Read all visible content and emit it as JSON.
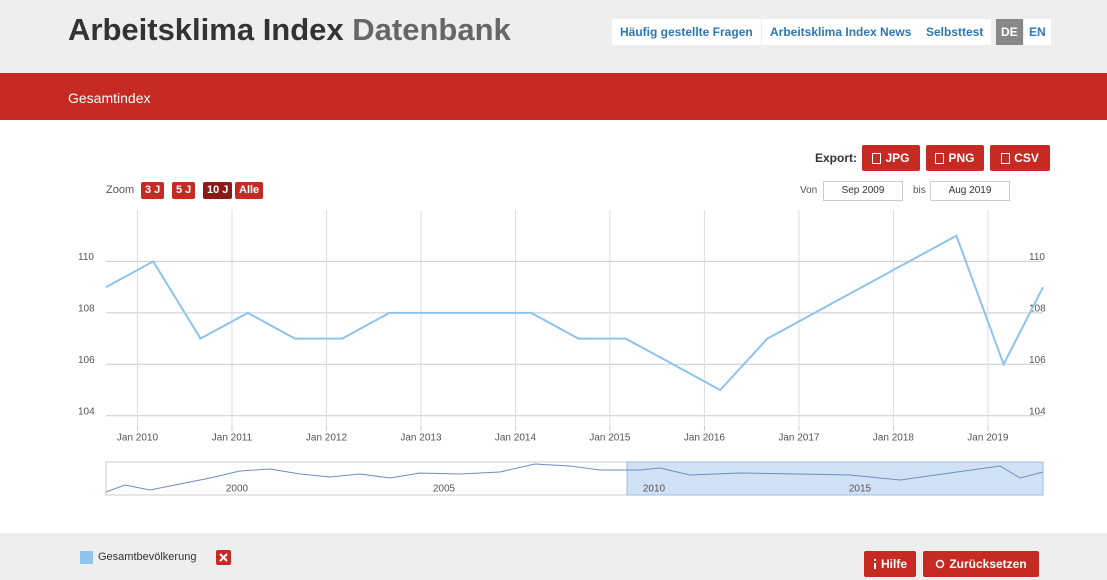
{
  "header": {
    "title": "Arbeitsklima Index",
    "title_suffix": "Datenbank",
    "nav": [
      "Häufig gestellte Fragen",
      "Arbeitsklima Index News",
      "Selbsttest"
    ],
    "languages": [
      "DE",
      "EN"
    ]
  },
  "section": {
    "title": "Gesamtindex"
  },
  "export": {
    "label": "Export:",
    "buttons": [
      "JPG",
      "PNG",
      "CSV"
    ]
  },
  "zoom": {
    "label": "Zoom",
    "buttons": [
      "3 J",
      "5 J",
      "10 J",
      "Alle"
    ]
  },
  "range": {
    "from_label": "Von",
    "from": "Sep 2009",
    "to_label": "bis",
    "to": "Aug 2019"
  },
  "chart_data": {
    "type": "line",
    "x": [
      "2009-09",
      "2010-03",
      "2010-09",
      "2011-03",
      "2011-09",
      "2012-03",
      "2012-09",
      "2013-03",
      "2013-09",
      "2014-03",
      "2014-09",
      "2015-03",
      "2015-09",
      "2016-03",
      "2016-09",
      "2017-03",
      "2017-09",
      "2018-03",
      "2018-09",
      "2019-03",
      "2019-08"
    ],
    "series": [
      {
        "name": "Gesamtbevölkerung",
        "color": "#8ec3ee",
        "values": [
          109,
          110,
          107,
          108,
          107,
          107,
          108,
          108,
          108,
          108,
          107,
          107,
          106,
          105,
          107,
          108,
          109,
          110,
          111,
          106,
          109
        ]
      }
    ],
    "xlim": [
      "2009-09",
      "2019-08"
    ],
    "xticks": [
      {
        "value": "2010-01",
        "label": "Jan 2010"
      },
      {
        "value": "2011-01",
        "label": "Jan 2011"
      },
      {
        "value": "2012-01",
        "label": "Jan 2012"
      },
      {
        "value": "2013-01",
        "label": "Jan 2013"
      },
      {
        "value": "2014-01",
        "label": "Jan 2014"
      },
      {
        "value": "2015-01",
        "label": "Jan 2015"
      },
      {
        "value": "2016-01",
        "label": "Jan 2016"
      },
      {
        "value": "2017-01",
        "label": "Jan 2017"
      },
      {
        "value": "2018-01",
        "label": "Jan 2018"
      },
      {
        "value": "2019-01",
        "label": "Jan 2019"
      }
    ],
    "ylim": [
      103.6,
      112
    ],
    "yticks": [
      104,
      106,
      108,
      110
    ],
    "grid": true
  },
  "navigator": {
    "labels": [
      "2000",
      "2005",
      "2010",
      "2015"
    ]
  },
  "footer": {
    "buttons": [
      "Hilfe",
      "Zurücksetzen"
    ]
  }
}
